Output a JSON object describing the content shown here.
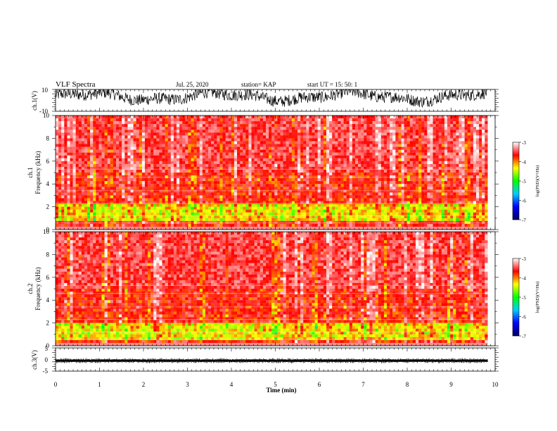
{
  "header": {
    "title": "VLF Spectra",
    "date": "Jul. 25, 2020",
    "station": "station= KAP",
    "start": "start  UT  =   15: 50: 1"
  },
  "chart_data": [
    {
      "type": "line",
      "panel": "ch1-waveform",
      "ylabel": "ch.1(V)",
      "ylim": [
        -10,
        10
      ],
      "yticks": [
        "10",
        "-10"
      ],
      "xlim": [
        0,
        10
      ],
      "x_end": 9.83,
      "trace": "dense noisy black waveform, envelope mostly between -6 and +10 V"
    },
    {
      "type": "heatmap",
      "panel": "ch1-spectrogram",
      "ylabel_top": "ch.1",
      "ylabel": "Frequency (kHz)",
      "ylim": [
        0,
        10
      ],
      "yticks": [
        "0",
        "2",
        "4",
        "6",
        "8",
        "10"
      ],
      "xlim": [
        0,
        10
      ],
      "x_end": 9.83,
      "dominant_level": -3.5,
      "enhanced_band_khz": [
        0.8,
        2.2
      ],
      "colorbar": {
        "label": "log(PSD)(V²/Hz)",
        "range": [
          -7,
          -3
        ],
        "ticks": [
          "-3",
          "-4",
          "-5",
          "-6",
          "-7"
        ],
        "colors": [
          "#000066",
          "#0000ff",
          "#00ccff",
          "#00ff00",
          "#ffff00",
          "#ff0000",
          "#ffffff"
        ]
      }
    },
    {
      "type": "heatmap",
      "panel": "ch2-spectrogram",
      "ylabel_top": "ch.2",
      "ylabel": "Frequency (kHz)",
      "ylim": [
        0,
        10
      ],
      "yticks": [
        "0",
        "2",
        "4",
        "6",
        "8",
        "10"
      ],
      "xlim": [
        0,
        10
      ],
      "x_end": 9.83,
      "dominant_level": -3.5,
      "enhanced_band_khz": [
        0.5,
        2.0
      ],
      "colorbar": {
        "label": "log(PSD)(V²/Hz)",
        "range": [
          -7,
          -3
        ],
        "ticks": [
          "-3",
          "-4",
          "-5",
          "-6",
          "-7"
        ],
        "colors": [
          "#000066",
          "#0000ff",
          "#00ccff",
          "#00ff00",
          "#ffff00",
          "#ff0000",
          "#ffffff"
        ]
      }
    },
    {
      "type": "line",
      "panel": "ch3-waveform",
      "ylabel": "ch.3(V)",
      "ylim": [
        -5,
        5
      ],
      "yticks": [
        "5",
        "0",
        "-5"
      ],
      "xlim": [
        0,
        10
      ],
      "x_end": 9.83,
      "trace": "thick black band around -0.5 V, amplitude about ±0.6 V"
    }
  ],
  "xaxis": {
    "label": "Time (min)",
    "ticks": [
      "0",
      "1",
      "2",
      "3",
      "4",
      "5",
      "6",
      "7",
      "8",
      "9",
      "10"
    ]
  }
}
